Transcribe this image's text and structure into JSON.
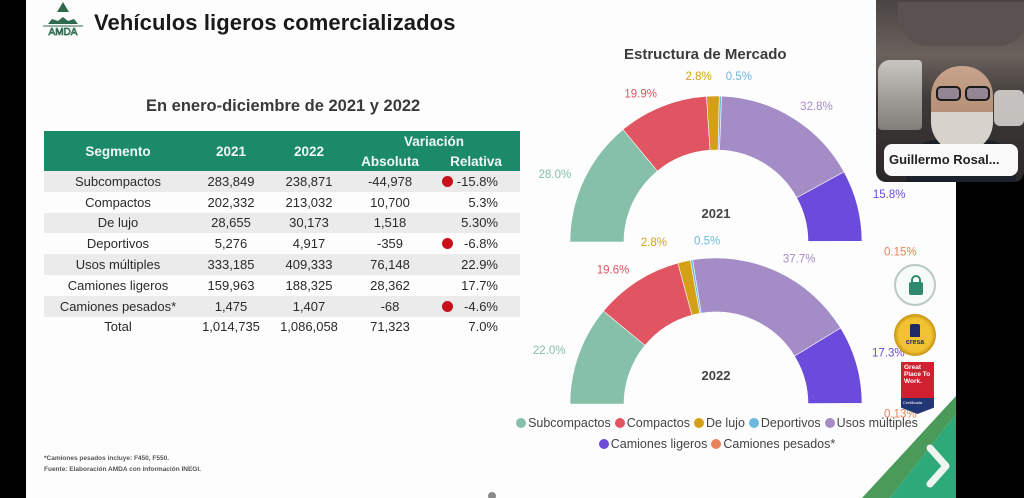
{
  "header": {
    "logo_text": "AMDA",
    "title": "Vehículos ligeros comercializados"
  },
  "table": {
    "subtitle": "En enero-diciembre de 2021 y 2022",
    "headers": {
      "segment": "Segmento",
      "year1": "2021",
      "year2": "2022",
      "variation": "Variación",
      "absolute": "Absoluta",
      "relative": "Relativa"
    },
    "rows": [
      {
        "segment": "Subcompactos",
        "y2021": "283,849",
        "y2022": "238,871",
        "abs": "-44,978",
        "rel": "-15.8%",
        "negative": true
      },
      {
        "segment": "Compactos",
        "y2021": "202,332",
        "y2022": "213,032",
        "abs": "10,700",
        "rel": "5.3%",
        "negative": false
      },
      {
        "segment": "De lujo",
        "y2021": "28,655",
        "y2022": "30,173",
        "abs": "1,518",
        "rel": "5.30%",
        "negative": false
      },
      {
        "segment": "Deportivos",
        "y2021": "5,276",
        "y2022": "4,917",
        "abs": "-359",
        "rel": "-6.8%",
        "negative": true
      },
      {
        "segment": "Usos múltiples",
        "y2021": "333,185",
        "y2022": "409,333",
        "abs": "76,148",
        "rel": "22.9%",
        "negative": false
      },
      {
        "segment": "Camiones ligeros",
        "y2021": "159,963",
        "y2022": "188,325",
        "abs": "28,362",
        "rel": "17.7%",
        "negative": false
      },
      {
        "segment": "Camiones pesados*",
        "y2021": "1,475",
        "y2022": "1,407",
        "abs": "-68",
        "rel": "-4.6%",
        "negative": true
      }
    ],
    "total": {
      "segment": "Total",
      "y2021": "1,014,735",
      "y2022": "1,086,058",
      "abs": "71,323",
      "rel": "7.0%"
    },
    "negative_indicator_color": "#c8101b"
  },
  "footnotes": {
    "note": "*Camiones pesados incluye: F450, F550.",
    "source": "Fuente: Elaboración AMDA con información INEGI."
  },
  "chart_data": {
    "type": "pie",
    "variant": "half-donut",
    "title": "Estructura de Mercado",
    "categories": [
      "Subcompactos",
      "Compactos",
      "De lujo",
      "Deportivos",
      "Usos múltiples",
      "Camiones ligeros",
      "Camiones pesados*"
    ],
    "colors": [
      "#86c0a8",
      "#e05561",
      "#d4a017",
      "#6cb8e0",
      "#a48cc6",
      "#6a4bdc",
      "#e8825a"
    ],
    "series": [
      {
        "name": "2021",
        "values": [
          28.0,
          19.9,
          2.8,
          0.5,
          32.8,
          15.8,
          0.15
        ],
        "labels": [
          "28.0%",
          "19.9%",
          "2.8%",
          "0.5%",
          "32.8%",
          "15.8%",
          "0.15%"
        ]
      },
      {
        "name": "2022",
        "values": [
          22.0,
          19.6,
          2.8,
          0.5,
          37.7,
          17.3,
          0.13
        ],
        "labels": [
          "22.0%",
          "19.6%",
          "2.8%",
          "0.5%",
          "37.7%",
          "17.3%",
          "0.13%"
        ]
      }
    ],
    "legend_position": "bottom"
  },
  "badges": {
    "cresa_text": "cresa",
    "gptw_text": "Great Place To Work.",
    "gptw_sub": "Certificada"
  },
  "video": {
    "participant_name": "Guillermo Rosal..."
  }
}
